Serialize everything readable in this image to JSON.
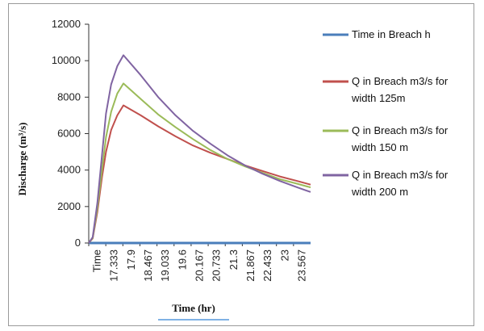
{
  "chart_data": {
    "type": "line",
    "title": "",
    "xlabel": "Time (hr)",
    "ylabel": "Discharge (m³/s)",
    "ylim": [
      0,
      12000
    ],
    "yticks": [
      "0",
      "2000",
      "4000",
      "6000",
      "8000",
      "10000",
      "12000"
    ],
    "x_tick_labels": [
      "Time",
      "17.333",
      "17.9",
      "18.467",
      "19.033",
      "19.6",
      "20.167",
      "20.733",
      "21.3",
      "21.867",
      "22.433",
      "23",
      "23.567"
    ],
    "x": [
      16.77,
      16.9,
      17.05,
      17.2,
      17.333,
      17.5,
      17.7,
      17.9,
      18.467,
      19.033,
      19.6,
      20.167,
      20.733,
      21.3,
      21.867,
      22.433,
      23,
      23.567,
      24.0
    ],
    "series": [
      {
        "name": "Time in Breach h",
        "color": "#4a7ebb",
        "values": [
          0,
          0,
          0,
          0,
          0,
          0,
          0,
          0,
          0,
          0,
          0,
          0,
          0,
          0,
          0,
          0,
          0,
          0,
          0
        ]
      },
      {
        "name": "Q in Breach m3/s for width 125m",
        "color": "#c0504d",
        "values": [
          0,
          250,
          1700,
          3600,
          5000,
          6200,
          7000,
          7550,
          7000,
          6400,
          5850,
          5350,
          4950,
          4600,
          4250,
          3950,
          3650,
          3400,
          3200
        ]
      },
      {
        "name": "Q in Breach m3/s for width 150 m",
        "color": "#9bbb59",
        "values": [
          0,
          280,
          1900,
          4000,
          5800,
          7200,
          8200,
          8750,
          7900,
          7050,
          6350,
          5700,
          5100,
          4600,
          4200,
          3850,
          3500,
          3250,
          3050
        ]
      },
      {
        "name": "Q in Breach m3/s for width 200 m",
        "color": "#8064a2",
        "values": [
          0,
          320,
          2200,
          4800,
          7100,
          8700,
          9700,
          10300,
          9200,
          8000,
          7000,
          6150,
          5450,
          4800,
          4250,
          3800,
          3400,
          3050,
          2800
        ]
      }
    ],
    "legend": "right"
  }
}
